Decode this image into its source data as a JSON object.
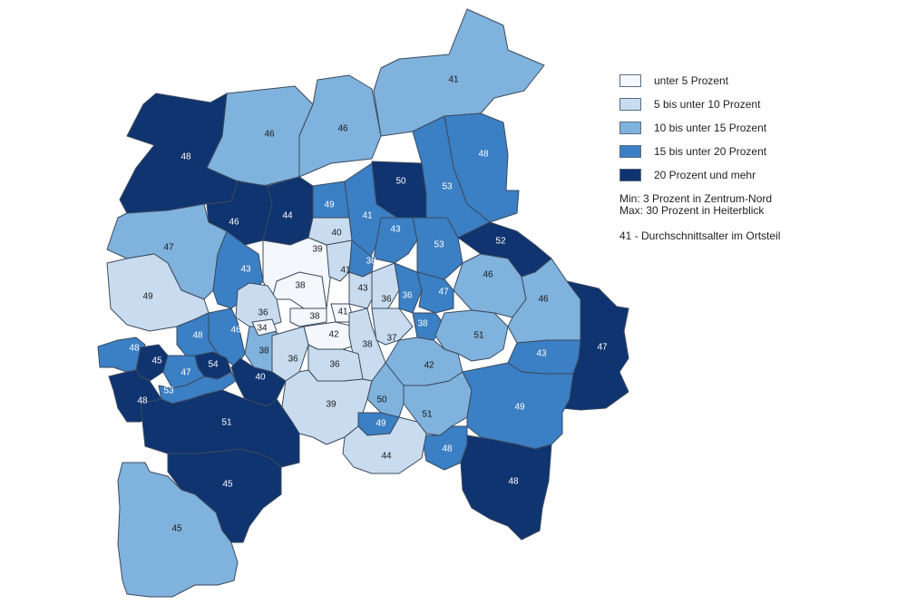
{
  "legend": {
    "items": [
      {
        "label": "unter 5 Prozent",
        "color": "#f4f8fd"
      },
      {
        "label": "5 bis unter 10 Prozent",
        "color": "#c9dcef"
      },
      {
        "label": "10 bis unter 15 Prozent",
        "color": "#7fb2dd"
      },
      {
        "label": "15 bis unter 20 Prozent",
        "color": "#3b7fc4"
      },
      {
        "label": "20 Prozent und mehr",
        "color": "#0f3470"
      }
    ],
    "min_text": "Min: 3 Prozent in Zentrum-Nord",
    "max_text": "Max: 30 Prozent in Heiterblick",
    "age_note": "41 - Durchschnittsalter im Ortsteil"
  },
  "districts": [
    {
      "age": "41",
      "class": 2
    },
    {
      "age": "46",
      "class": 2
    },
    {
      "age": "46",
      "class": 2
    },
    {
      "age": "48",
      "class": 4
    },
    {
      "age": "48",
      "class": 3
    },
    {
      "age": "53",
      "class": 3
    },
    {
      "age": "50",
      "class": 4
    },
    {
      "age": "49",
      "class": 3
    },
    {
      "age": "46",
      "class": 4
    },
    {
      "age": "44",
      "class": 4
    },
    {
      "age": "41",
      "class": 3
    },
    {
      "age": "40",
      "class": 1
    },
    {
      "age": "43",
      "class": 3
    },
    {
      "age": "53",
      "class": 3
    },
    {
      "age": "52",
      "class": 4
    },
    {
      "age": "47",
      "class": 2
    },
    {
      "age": "43",
      "class": 3
    },
    {
      "age": "39",
      "class": 0
    },
    {
      "age": "41",
      "class": 1
    },
    {
      "age": "38",
      "class": 3
    },
    {
      "age": "46",
      "class": 2
    },
    {
      "age": "49",
      "class": 1
    },
    {
      "age": "38",
      "class": 0
    },
    {
      "age": "43",
      "class": 1
    },
    {
      "age": "36",
      "class": 1
    },
    {
      "age": "36",
      "class": 3
    },
    {
      "age": "47",
      "class": 3
    },
    {
      "age": "46",
      "class": 2
    },
    {
      "age": "36",
      "class": 1
    },
    {
      "age": "38",
      "class": 0
    },
    {
      "age": "41",
      "class": 0
    },
    {
      "age": "38",
      "class": 2
    },
    {
      "age": "34",
      "class": 0
    },
    {
      "age": "42",
      "class": 0
    },
    {
      "age": "46",
      "class": 3
    },
    {
      "age": "48",
      "class": 3
    },
    {
      "age": "38",
      "class": 1
    },
    {
      "age": "37",
      "class": 1
    },
    {
      "age": "38",
      "class": 3
    },
    {
      "age": "51",
      "class": 2
    },
    {
      "age": "47",
      "class": 4
    },
    {
      "age": "48",
      "class": 3
    },
    {
      "age": "45",
      "class": 4
    },
    {
      "age": "54",
      "class": 4
    },
    {
      "age": "36",
      "class": 1
    },
    {
      "age": "36",
      "class": 1
    },
    {
      "age": "43",
      "class": 3
    },
    {
      "age": "47",
      "class": 3
    },
    {
      "age": "40",
      "class": 4
    },
    {
      "age": "42",
      "class": 2
    },
    {
      "age": "53",
      "class": 3
    },
    {
      "age": "48",
      "class": 4
    },
    {
      "age": "39",
      "class": 1
    },
    {
      "age": "50",
      "class": 2
    },
    {
      "age": "49",
      "class": 3
    },
    {
      "age": "51",
      "class": 2
    },
    {
      "age": "49",
      "class": 3
    },
    {
      "age": "51",
      "class": 4
    },
    {
      "age": "48",
      "class": 3
    },
    {
      "age": "44",
      "class": 1
    },
    {
      "age": "45",
      "class": 4
    },
    {
      "age": "48",
      "class": 4
    },
    {
      "age": "45",
      "class": 2
    }
  ]
}
